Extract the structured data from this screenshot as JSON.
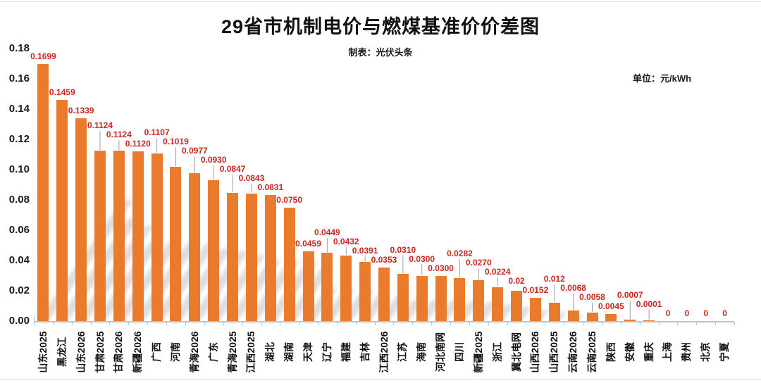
{
  "header": {
    "title": "29省市机制电价与燃煤基准价价差图",
    "subtitle": "制表：光伏头条",
    "unit_label": "单位：元/kWh"
  },
  "chart_data": {
    "type": "bar",
    "title": "29省市机制电价与燃煤基准价价差图",
    "subtitle": "制表：光伏头条",
    "unit": "单位：元/kWh",
    "categories": [
      "山东2025",
      "黑龙江",
      "山东2026",
      "甘肃2025",
      "甘肃2026",
      "新疆2026",
      "广西",
      "河南",
      "青海2026",
      "广东",
      "青海2025",
      "江西2025",
      "湖北",
      "湖南",
      "天津",
      "辽宁",
      "福建",
      "吉林",
      "江西2026",
      "江苏",
      "海南",
      "河北南网",
      "四川",
      "新疆2025",
      "浙江",
      "冀北电网",
      "山西2026",
      "山西2025",
      "云南2026",
      "云南2025",
      "陕西",
      "安徽",
      "重庆",
      "上海",
      "贵州",
      "北京",
      "宁夏"
    ],
    "values": [
      0.1699,
      0.1459,
      0.1339,
      0.1124,
      0.1124,
      0.112,
      0.1107,
      0.1019,
      0.0977,
      0.093,
      0.0847,
      0.0843,
      0.0831,
      0.075,
      0.0459,
      0.0449,
      0.0432,
      0.0391,
      0.0353,
      0.031,
      0.03,
      0.03,
      0.0282,
      0.027,
      0.0224,
      0.02,
      0.0152,
      0.012,
      0.0068,
      0.0058,
      0.0045,
      0.0007,
      0.0001,
      0,
      0,
      0,
      0
    ],
    "value_labels": [
      "0.1699",
      "0.1459",
      "0.1339",
      "0.1124",
      "0.1124",
      "0.1120",
      "0.1107",
      "0.1019",
      "0.0977",
      "0.0930",
      "0.0847",
      "0.0843",
      "0.0831",
      "0.0750",
      "0.0459",
      "0.0449",
      "0.0432",
      "0.0391",
      "0.0353",
      "0.0310",
      "0.0300",
      "0.0300",
      "0.0282",
      "0.0270",
      "0.0224",
      "0.02",
      "0.0152",
      "0.012",
      "0.0068",
      "0.0058",
      "0.0045",
      "0.0007",
      "0.0001",
      "0",
      "0",
      "0",
      "0"
    ],
    "yticks": [
      "0.18",
      "0.16",
      "0.14",
      "0.12",
      "0.10",
      "0.08",
      "0.06",
      "0.04",
      "0.02",
      "0.00"
    ],
    "ylim": [
      0,
      0.18
    ],
    "ytick_step": 0.02,
    "xlabel": "",
    "ylabel": "",
    "grid": false,
    "legend": "none",
    "colors": {
      "bar": "#EB7B2C",
      "value_label": "#C9251E",
      "axis": "#A9C7E7",
      "text": "#1a1a1a",
      "leader_line": "#9e9e9e",
      "shadow": "#bdbdbd",
      "frame_line": "#d9d9d9"
    }
  }
}
